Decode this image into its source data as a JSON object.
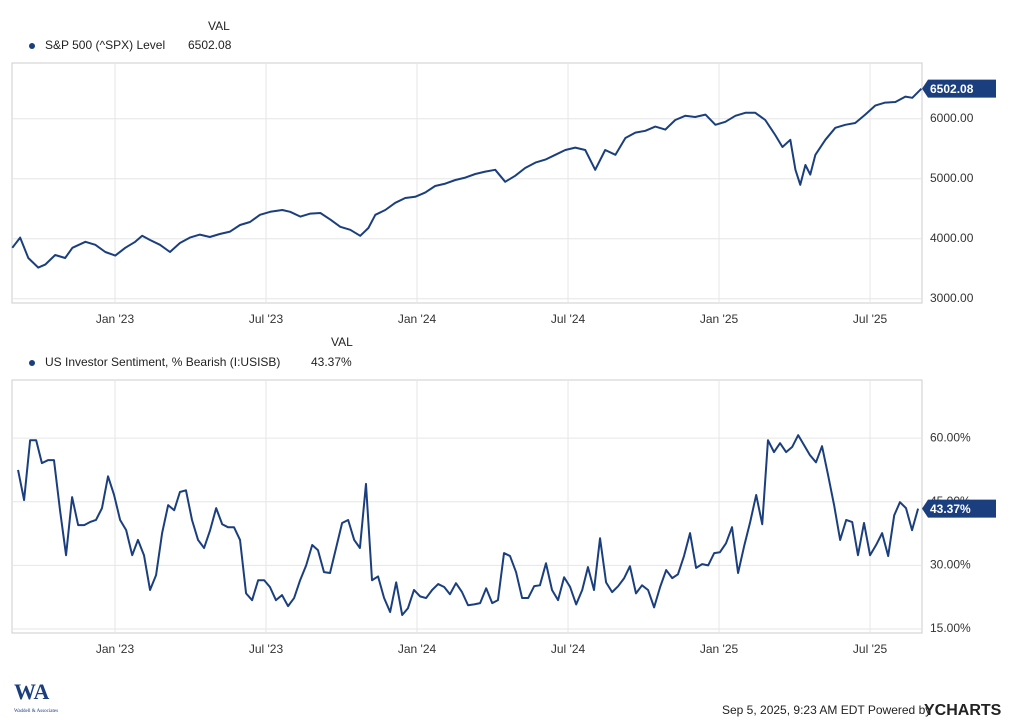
{
  "chart_data": [
    {
      "type": "line",
      "value_header": "VAL",
      "x": [
        2022.66,
        2022.686,
        2022.713,
        2022.746,
        2022.769,
        2022.802,
        2022.835,
        2022.859,
        2022.902,
        2022.935,
        2022.968,
        2023.001,
        2023.034,
        2023.067,
        2023.09,
        2023.116,
        2023.149,
        2023.182,
        2023.215,
        2023.248,
        2023.281,
        2023.314,
        2023.347,
        2023.381,
        2023.414,
        2023.447,
        2023.48,
        2023.514,
        2023.554,
        2023.58,
        2023.614,
        2023.647,
        2023.68,
        2023.713,
        2023.746,
        2023.779,
        2023.812,
        2023.839,
        2023.862,
        2023.895,
        2023.928,
        2023.961,
        2023.994,
        2024.027,
        2024.06,
        2024.094,
        2024.127,
        2024.16,
        2024.193,
        2024.226,
        2024.259,
        2024.292,
        2024.325,
        2024.358,
        2024.392,
        2024.425,
        2024.458,
        2024.491,
        2024.524,
        2024.557,
        2024.59,
        2024.623,
        2024.657,
        2024.69,
        2024.723,
        2024.756,
        2024.789,
        2024.822,
        2024.855,
        2024.888,
        2024.921,
        2024.955,
        2024.988,
        2025.021,
        2025.054,
        2025.087,
        2025.12,
        2025.153,
        2025.186,
        2025.21,
        2025.236,
        2025.253,
        2025.269,
        2025.286,
        2025.302,
        2025.319,
        2025.352,
        2025.385,
        2025.418,
        2025.451,
        2025.484,
        2025.517,
        2025.55,
        2025.584,
        2025.617,
        2025.64,
        2025.67
      ],
      "series": [
        {
          "name": "S&P 500 (^SPX) Level",
          "color": "#1b3f7e",
          "values": [
            3850,
            4020,
            3680,
            3520,
            3570,
            3730,
            3680,
            3850,
            3950,
            3900,
            3780,
            3720,
            3850,
            3950,
            4050,
            3980,
            3900,
            3780,
            3930,
            4020,
            4070,
            4030,
            4080,
            4120,
            4230,
            4280,
            4400,
            4450,
            4480,
            4450,
            4370,
            4420,
            4430,
            4320,
            4200,
            4150,
            4050,
            4180,
            4400,
            4480,
            4600,
            4680,
            4700,
            4770,
            4880,
            4920,
            4980,
            5020,
            5080,
            5120,
            5150,
            4950,
            5050,
            5180,
            5270,
            5320,
            5400,
            5480,
            5520,
            5480,
            5150,
            5480,
            5400,
            5680,
            5770,
            5800,
            5870,
            5820,
            5980,
            6050,
            6030,
            6070,
            5900,
            5950,
            6050,
            6100,
            6100,
            5980,
            5730,
            5530,
            5650,
            5150,
            4900,
            5230,
            5070,
            5400,
            5650,
            5850,
            5900,
            5930,
            6070,
            6220,
            6270,
            6280,
            6370,
            6350,
            6502.08
          ]
        }
      ],
      "xlim": [
        2022.659,
        2025.672
      ],
      "xticks": [
        {
          "value": 2023,
          "label": "Jan '23"
        },
        {
          "value": 2023.5,
          "label": "Jul '23"
        },
        {
          "value": 2024,
          "label": "Jan '24"
        },
        {
          "value": 2024.5,
          "label": "Jul '24"
        },
        {
          "value": 2025,
          "label": "Jan '25"
        },
        {
          "value": 2025.5,
          "label": "Jul '25"
        }
      ],
      "ylim": [
        2930,
        6930
      ],
      "yticks": [
        {
          "value": 3000,
          "label": "3000.00"
        },
        {
          "value": 4000,
          "label": "4000.00"
        },
        {
          "value": 5000,
          "label": "5000.00"
        },
        {
          "value": 6000,
          "label": "6000.00"
        }
      ],
      "grid": true
    },
    {
      "type": "line",
      "value_header": "VAL",
      "x": [
        2022.679,
        2022.699,
        2022.719,
        2022.739,
        2022.758,
        2022.778,
        2022.798,
        2022.818,
        2022.838,
        2022.858,
        2022.878,
        2022.898,
        2022.917,
        2022.937,
        2022.957,
        2022.977,
        2022.997,
        2023.017,
        2023.037,
        2023.057,
        2023.076,
        2023.096,
        2023.116,
        2023.136,
        2023.156,
        2023.176,
        2023.196,
        2023.215,
        2023.235,
        2023.255,
        2023.275,
        2023.295,
        2023.315,
        2023.335,
        2023.355,
        2023.374,
        2023.394,
        2023.414,
        2023.434,
        2023.454,
        2023.474,
        2023.494,
        2023.513,
        2023.533,
        2023.553,
        2023.573,
        2023.593,
        2023.613,
        2023.633,
        2023.653,
        2023.672,
        2023.692,
        2023.712,
        2023.732,
        2023.752,
        2023.772,
        2023.792,
        2023.811,
        2023.831,
        2023.851,
        2023.871,
        2023.891,
        2023.911,
        2023.931,
        2023.951,
        2023.97,
        2023.99,
        2024.01,
        2024.03,
        2024.05,
        2024.07,
        2024.09,
        2024.109,
        2024.129,
        2024.149,
        2024.169,
        2024.189,
        2024.209,
        2024.229,
        2024.249,
        2024.268,
        2024.288,
        2024.308,
        2024.328,
        2024.348,
        2024.368,
        2024.388,
        2024.407,
        2024.427,
        2024.447,
        2024.467,
        2024.487,
        2024.507,
        2024.527,
        2024.547,
        2024.566,
        2024.586,
        2024.606,
        2024.626,
        2024.646,
        2024.666,
        2024.686,
        2024.705,
        2024.725,
        2024.745,
        2024.765,
        2024.785,
        2024.805,
        2024.825,
        2024.845,
        2024.864,
        2024.884,
        2024.904,
        2024.924,
        2024.944,
        2024.964,
        2024.984,
        2025.003,
        2025.023,
        2025.043,
        2025.063,
        2025.083,
        2025.103,
        2025.123,
        2025.143,
        2025.162,
        2025.182,
        2025.202,
        2025.222,
        2025.242,
        2025.262,
        2025.282,
        2025.301,
        2025.321,
        2025.341,
        2025.361,
        2025.381,
        2025.401,
        2025.421,
        2025.441,
        2025.46,
        2025.48,
        2025.5,
        2025.52,
        2025.54,
        2025.56,
        2025.58,
        2025.599,
        2025.619,
        2025.639,
        2025.659
      ],
      "series": [
        {
          "name": "US Investor Sentiment, % Bearish (I:USISB)",
          "color": "#1b3f7e",
          "last_value_label": "43.37%",
          "values": [
            52.5,
            45.4,
            59.5,
            59.5,
            54.1,
            54.8,
            54.8,
            43.0,
            32.4,
            46.1,
            39.5,
            39.5,
            40.2,
            40.7,
            43.5,
            51.0,
            46.6,
            40.7,
            38.3,
            32.4,
            36.0,
            32.4,
            24.2,
            27.7,
            37.6,
            44.2,
            43.0,
            47.3,
            47.7,
            40.7,
            36.0,
            34.1,
            38.3,
            43.5,
            39.7,
            39.0,
            39.0,
            36.0,
            23.4,
            21.8,
            26.5,
            26.5,
            24.9,
            21.8,
            23.0,
            20.4,
            22.3,
            26.5,
            30.0,
            34.8,
            33.6,
            28.4,
            28.2,
            34.1,
            40.0,
            40.7,
            36.0,
            34.1,
            49.2,
            26.5,
            27.4,
            22.3,
            19.0,
            26.0,
            18.3,
            19.9,
            24.2,
            22.7,
            22.3,
            24.2,
            25.6,
            24.9,
            23.2,
            25.8,
            23.7,
            20.6,
            20.8,
            21.1,
            24.6,
            21.1,
            21.8,
            32.9,
            32.2,
            28.4,
            22.3,
            22.3,
            25.1,
            25.3,
            30.5,
            24.2,
            21.8,
            27.2,
            24.9,
            20.8,
            24.2,
            29.6,
            24.2,
            36.4,
            26.0,
            23.7,
            25.1,
            27.0,
            29.8,
            23.4,
            25.3,
            24.2,
            20.1,
            24.9,
            28.9,
            27.0,
            27.9,
            32.2,
            37.6,
            29.4,
            30.3,
            30.0,
            32.9,
            33.1,
            35.2,
            39.0,
            28.2,
            34.5,
            40.2,
            46.6,
            39.7,
            59.5,
            56.7,
            58.8,
            56.7,
            57.9,
            60.7,
            58.3,
            56.0,
            54.3,
            58.1,
            51.3,
            44.2,
            36.0,
            40.7,
            40.2,
            32.4,
            40.0,
            32.4,
            34.8,
            37.6,
            32.2,
            41.8,
            44.9,
            43.5,
            38.3,
            43.37
          ]
        }
      ],
      "xlim": [
        2022.659,
        2025.672
      ],
      "xticks": [
        {
          "value": 2023,
          "label": "Jan '23"
        },
        {
          "value": 2023.5,
          "label": "Jul '23"
        },
        {
          "value": 2024,
          "label": "Jan '24"
        },
        {
          "value": 2024.5,
          "label": "Jul '24"
        },
        {
          "value": 2025,
          "label": "Jan '25"
        },
        {
          "value": 2025.5,
          "label": "Jul '25"
        }
      ],
      "ylim": [
        14.06,
        73.7
      ],
      "yticks": [
        {
          "value": 15,
          "label": "15.00%"
        },
        {
          "value": 30,
          "label": "30.00%"
        },
        {
          "value": 45,
          "label": "45.00%"
        },
        {
          "value": 60,
          "label": "60.00%"
        }
      ],
      "grid": true
    }
  ],
  "footer": {
    "timestamp": "Sep 5, 2025, 9:23 AM EDT Powered by",
    "brand": "YCHARTS",
    "logo": "WA",
    "logo_text": "Waddell & Associates"
  }
}
